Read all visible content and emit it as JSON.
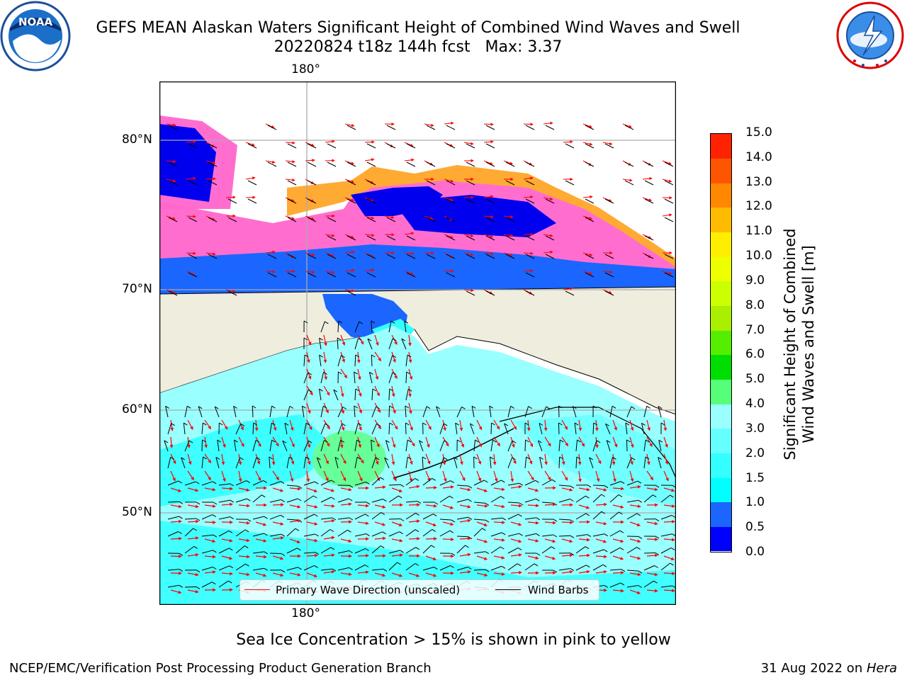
{
  "title": {
    "line1": "GEFS MEAN Alaskan Waters Significant Height of Combined Wind Waves and Swell",
    "line2": "20220824 t18z 144h fcst   Max: 3.37"
  },
  "logos": {
    "left_name": "noaa-logo",
    "left_text": "NOAA",
    "right_name": "nws-logo"
  },
  "map": {
    "top_lon_label": "180°",
    "bottom_lon_label": "180°",
    "lat_labels": [
      "80°N",
      "70°N",
      "60°N",
      "50°N"
    ],
    "colors": {
      "land": "#efedde",
      "ocean_shallow": "#33ffff",
      "ocean_mid": "#99ffff",
      "ocean_high": "#66ff99",
      "ice_pink": "#ff66cc",
      "ice_yellow": "#ffdd44",
      "ice_orange": "#ffaa33",
      "calm_blue": "#1a66ff",
      "deep_blue": "#0000ee"
    }
  },
  "legend": {
    "wave_label": "Primary Wave Direction (unscaled)",
    "wave_color": "#ff0000",
    "barb_label": "Wind Barbs",
    "barb_color": "#000000"
  },
  "colorbar": {
    "title_line1": "Significant Height of Combined",
    "title_line2": "Wind Waves and Swell [m]",
    "ticks": [
      "0.0",
      "0.5",
      "1.0",
      "1.5",
      "2.0",
      "3.0",
      "4.0",
      "5.0",
      "6.0",
      "7.0",
      "8.0",
      "9.0",
      "10.0",
      "11.0",
      "12.0",
      "13.0",
      "14.0",
      "15.0"
    ],
    "colors": [
      "#0000ff",
      "#1a66ff",
      "#00ffff",
      "#33ffff",
      "#66ffff",
      "#99ffff",
      "#55ff77",
      "#00dd00",
      "#55ee00",
      "#aaee00",
      "#ccff00",
      "#eeff00",
      "#ffee00",
      "#ffbb00",
      "#ff8800",
      "#ff5500",
      "#ff2200",
      "#ff0000"
    ]
  },
  "footer": {
    "ice_note": "Sea Ice Concentration > 15% is shown in pink to yellow",
    "left": "NCEP/EMC/Verification Post Processing Product Generation Branch",
    "date": "31 Aug 2022 on ",
    "machine": "Hera"
  }
}
